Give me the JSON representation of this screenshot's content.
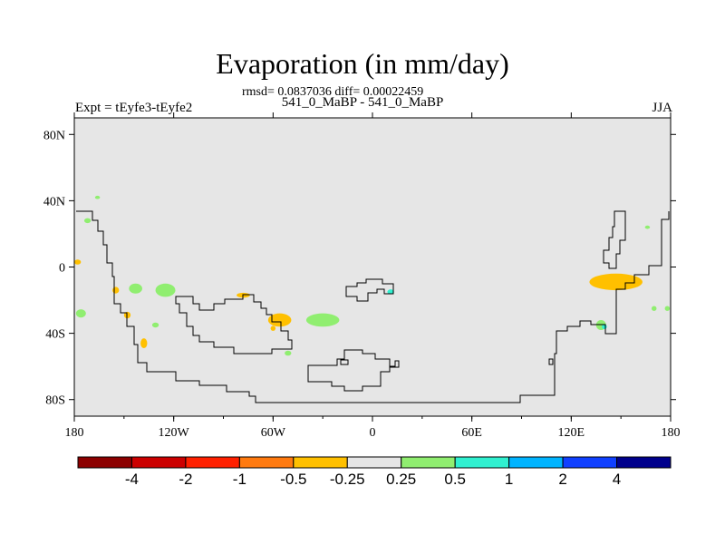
{
  "title": "Evaporation (in mm/day)",
  "stats": "rmsd= 0.0837036 diff= 0.00022459",
  "left_label": "Expt = tEyfe3-tEyfe2",
  "center_label": "541_0_MaBP - 541_0_MaBP",
  "right_label": "JJA",
  "colors": {
    "background_field": "#e6e6e6",
    "coastline": "#000000"
  },
  "axes": {
    "lon_range": [
      -180,
      180
    ],
    "lat_range": [
      -90,
      90
    ],
    "x_ticks": [
      {
        "lon": -180,
        "label": "180"
      },
      {
        "lon": -120,
        "label": "120W"
      },
      {
        "lon": -60,
        "label": "60W"
      },
      {
        "lon": 0,
        "label": "0"
      },
      {
        "lon": 60,
        "label": "60E"
      },
      {
        "lon": 120,
        "label": "120E"
      },
      {
        "lon": 180,
        "label": "180"
      }
    ],
    "y_ticks": [
      {
        "lat": 80,
        "label": "80N"
      },
      {
        "lat": 40,
        "label": "40N"
      },
      {
        "lat": 0,
        "label": "0"
      },
      {
        "lat": -40,
        "label": "40S"
      },
      {
        "lat": -80,
        "label": "80S"
      }
    ]
  },
  "colorbar": {
    "bins": [
      {
        "color": "#8c0000"
      },
      {
        "color": "#cc0000"
      },
      {
        "color": "#ff2000"
      },
      {
        "color": "#ff7a10"
      },
      {
        "color": "#ffc000"
      },
      {
        "color": "#e6e6e6"
      },
      {
        "color": "#90ee70"
      },
      {
        "color": "#30f0d0"
      },
      {
        "color": "#00b4ff"
      },
      {
        "color": "#1040ff"
      },
      {
        "color": "#00008c"
      }
    ],
    "labels": [
      "-4",
      "-2",
      "-1",
      "-0.5",
      "-0.25",
      "0.25",
      "0.5",
      "1",
      "2",
      "4"
    ]
  },
  "chart_data": {
    "type": "heatmap",
    "title": "Evaporation (in mm/day)",
    "xlim": [
      -180,
      180
    ],
    "ylim": [
      -90,
      90
    ],
    "grid": false,
    "features": [
      {
        "lon": 147,
        "lat": -9,
        "dlon": 16,
        "dlat": 5,
        "color": "#ffc000"
      },
      {
        "lon": -56,
        "lat": -32,
        "dlon": 7,
        "dlat": 4,
        "color": "#ffc000"
      },
      {
        "lon": -178,
        "lat": 3,
        "dlon": 2,
        "dlat": 1.5,
        "color": "#ffc000"
      },
      {
        "lon": -138,
        "lat": -46,
        "dlon": 2,
        "dlat": 3,
        "color": "#ffc000"
      },
      {
        "lon": -148,
        "lat": -29,
        "dlon": 2,
        "dlat": 2,
        "color": "#ffc000"
      },
      {
        "lon": -78,
        "lat": -17,
        "dlon": 4,
        "dlat": 1.5,
        "color": "#ffc000"
      },
      {
        "lon": -155,
        "lat": -14,
        "dlon": 2,
        "dlat": 2,
        "color": "#ffc000"
      },
      {
        "lon": -60,
        "lat": -37,
        "dlon": 1.5,
        "dlat": 1.5,
        "color": "#ffc000"
      },
      {
        "lon": -125,
        "lat": -14,
        "dlon": 6,
        "dlat": 4,
        "color": "#90ee70"
      },
      {
        "lon": -143,
        "lat": -13,
        "dlon": 4,
        "dlat": 3,
        "color": "#90ee70"
      },
      {
        "lon": -30,
        "lat": -32,
        "dlon": 10,
        "dlat": 4,
        "color": "#90ee70"
      },
      {
        "lon": -176,
        "lat": -28,
        "dlon": 3,
        "dlat": 2.5,
        "color": "#90ee70"
      },
      {
        "lon": -172,
        "lat": 28,
        "dlon": 2,
        "dlat": 1.5,
        "color": "#90ee70"
      },
      {
        "lon": -131,
        "lat": -35,
        "dlon": 2,
        "dlat": 1.5,
        "color": "#90ee70"
      },
      {
        "lon": -51,
        "lat": -52,
        "dlon": 2,
        "dlat": 1.5,
        "color": "#90ee70"
      },
      {
        "lon": 170,
        "lat": -25,
        "dlon": 1.5,
        "dlat": 1.5,
        "color": "#90ee70"
      },
      {
        "lon": 178,
        "lat": -25,
        "dlon": 1.5,
        "dlat": 1.5,
        "color": "#90ee70"
      },
      {
        "lon": 138,
        "lat": -35,
        "dlon": 3,
        "dlat": 3,
        "color": "#90ee70"
      },
      {
        "lon": -166,
        "lat": 42,
        "dlon": 1.5,
        "dlat": 1,
        "color": "#90ee70"
      },
      {
        "lon": 166,
        "lat": 24,
        "dlon": 1.5,
        "dlat": 1,
        "color": "#90ee70"
      },
      {
        "lon": 11,
        "lat": -15,
        "dlon": 2,
        "dlat": 1.5,
        "color": "#30f0d0"
      },
      {
        "lon": 140,
        "lat": -36,
        "dlon": 1.5,
        "dlat": 1.5,
        "color": "#30f0d0"
      }
    ]
  }
}
